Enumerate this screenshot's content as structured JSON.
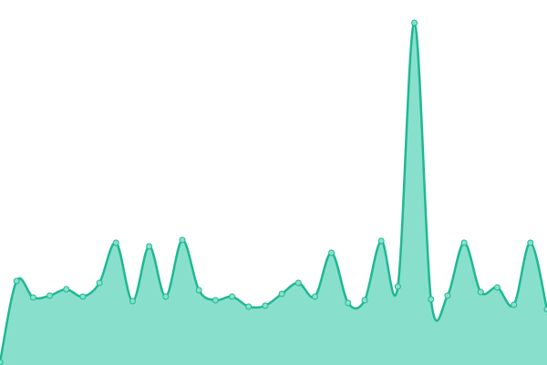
{
  "chart_data": {
    "type": "area",
    "values": [
      3,
      92,
      74,
      76,
      83,
      75,
      90,
      134,
      70,
      130,
      75,
      137,
      82,
      71,
      75,
      64,
      65,
      78,
      90,
      75,
      123,
      68,
      71,
      136,
      86,
      375,
      72,
      76,
      134,
      80,
      85,
      66,
      134,
      61
    ],
    "ylim": [
      0,
      400
    ],
    "color": "#1fb893",
    "fill": "#88e0cc"
  }
}
